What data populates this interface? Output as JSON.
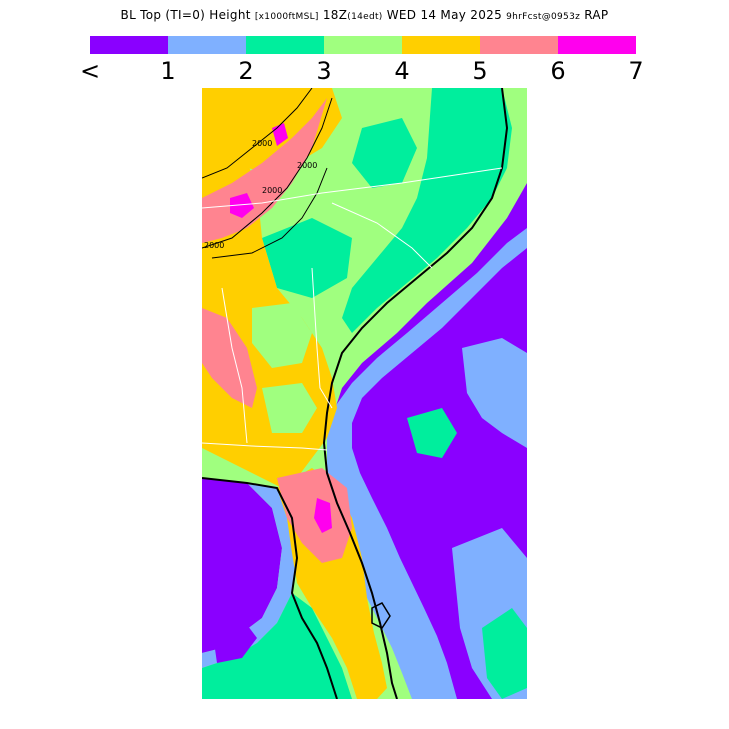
{
  "header": {
    "title_main": "BL Top (TI=0) Height",
    "title_units": "[x1000ftMSL]",
    "title_time": "18Z",
    "title_local": "(14edt)",
    "title_date": "WED 14 May 2025",
    "title_fcst": "9hrFcst@0953z",
    "title_model": "RAP"
  },
  "legend": {
    "colors": [
      "#8a00ff",
      "#7fb0ff",
      "#00ee9d",
      "#a0ff7f",
      "#ffcf00",
      "#ff8490",
      "#ff00ee"
    ],
    "labels": [
      "<",
      "1",
      "2",
      "3",
      "4",
      "5",
      "6",
      "7"
    ]
  },
  "map": {
    "contour_labels": [
      "2000",
      "2000",
      "2000",
      "2000"
    ]
  }
}
